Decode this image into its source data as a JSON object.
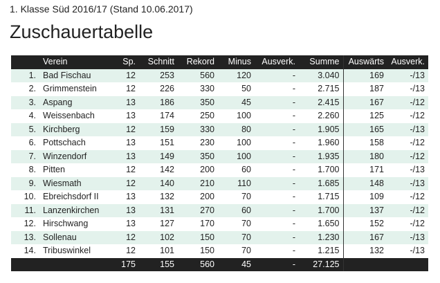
{
  "header": {
    "subtitle": "1. Klasse Süd 2016/17 (Stand 10.06.2017)",
    "title": "Zuschauertabelle"
  },
  "table": {
    "columns": {
      "rank": "",
      "verein": "Verein",
      "sp": "Sp.",
      "schnitt": "Schnitt",
      "rekord": "Rekord",
      "minus": "Minus",
      "ausverk": "Ausverk.",
      "summe": "Summe",
      "auswaerts": "Auswärts",
      "ausverk2": "Ausverk."
    },
    "rows": [
      {
        "rank": "1.",
        "verein": "Bad Fischau",
        "sp": "12",
        "schnitt": "253",
        "rekord": "560",
        "minus": "120",
        "ausverk": "-",
        "summe": "3.040",
        "auswaerts": "169",
        "ausverk2": "-/13"
      },
      {
        "rank": "2.",
        "verein": "Grimmenstein",
        "sp": "12",
        "schnitt": "226",
        "rekord": "330",
        "minus": "50",
        "ausverk": "-",
        "summe": "2.715",
        "auswaerts": "187",
        "ausverk2": "-/13"
      },
      {
        "rank": "3.",
        "verein": "Aspang",
        "sp": "13",
        "schnitt": "186",
        "rekord": "350",
        "minus": "45",
        "ausverk": "-",
        "summe": "2.415",
        "auswaerts": "167",
        "ausverk2": "-/12"
      },
      {
        "rank": "4.",
        "verein": "Weissenbach",
        "sp": "13",
        "schnitt": "174",
        "rekord": "250",
        "minus": "100",
        "ausverk": "-",
        "summe": "2.260",
        "auswaerts": "125",
        "ausverk2": "-/12"
      },
      {
        "rank": "5.",
        "verein": "Kirchberg",
        "sp": "12",
        "schnitt": "159",
        "rekord": "330",
        "minus": "80",
        "ausverk": "-",
        "summe": "1.905",
        "auswaerts": "165",
        "ausverk2": "-/13"
      },
      {
        "rank": "6.",
        "verein": "Pottschach",
        "sp": "13",
        "schnitt": "151",
        "rekord": "230",
        "minus": "100",
        "ausverk": "-",
        "summe": "1.960",
        "auswaerts": "158",
        "ausverk2": "-/12"
      },
      {
        "rank": "7.",
        "verein": "Winzendorf",
        "sp": "13",
        "schnitt": "149",
        "rekord": "350",
        "minus": "100",
        "ausverk": "-",
        "summe": "1.935",
        "auswaerts": "180",
        "ausverk2": "-/12"
      },
      {
        "rank": "8.",
        "verein": "Pitten",
        "sp": "12",
        "schnitt": "142",
        "rekord": "200",
        "minus": "60",
        "ausverk": "-",
        "summe": "1.700",
        "auswaerts": "171",
        "ausverk2": "-/13"
      },
      {
        "rank": "9.",
        "verein": "Wiesmath",
        "sp": "12",
        "schnitt": "140",
        "rekord": "210",
        "minus": "110",
        "ausverk": "-",
        "summe": "1.685",
        "auswaerts": "148",
        "ausverk2": "-/13"
      },
      {
        "rank": "10.",
        "verein": "Ebreichsdorf II",
        "sp": "13",
        "schnitt": "132",
        "rekord": "200",
        "minus": "70",
        "ausverk": "-",
        "summe": "1.715",
        "auswaerts": "109",
        "ausverk2": "-/12"
      },
      {
        "rank": "11.",
        "verein": "Lanzenkirchen",
        "sp": "13",
        "schnitt": "131",
        "rekord": "270",
        "minus": "60",
        "ausverk": "-",
        "summe": "1.700",
        "auswaerts": "137",
        "ausverk2": "-/12"
      },
      {
        "rank": "12.",
        "verein": "Hirschwang",
        "sp": "13",
        "schnitt": "127",
        "rekord": "170",
        "minus": "70",
        "ausverk": "-",
        "summe": "1.650",
        "auswaerts": "152",
        "ausverk2": "-/12"
      },
      {
        "rank": "13.",
        "verein": "Sollenau",
        "sp": "12",
        "schnitt": "102",
        "rekord": "150",
        "minus": "70",
        "ausverk": "-",
        "summe": "1.230",
        "auswaerts": "167",
        "ausverk2": "-/13"
      },
      {
        "rank": "14.",
        "verein": "Tribuswinkel",
        "sp": "12",
        "schnitt": "101",
        "rekord": "150",
        "minus": "70",
        "ausverk": "-",
        "summe": "1.215",
        "auswaerts": "132",
        "ausverk2": "-/13"
      }
    ],
    "totals": {
      "sp": "175",
      "schnitt": "155",
      "rekord": "560",
      "minus": "45",
      "ausverk": "-",
      "summe": "27.125"
    }
  }
}
